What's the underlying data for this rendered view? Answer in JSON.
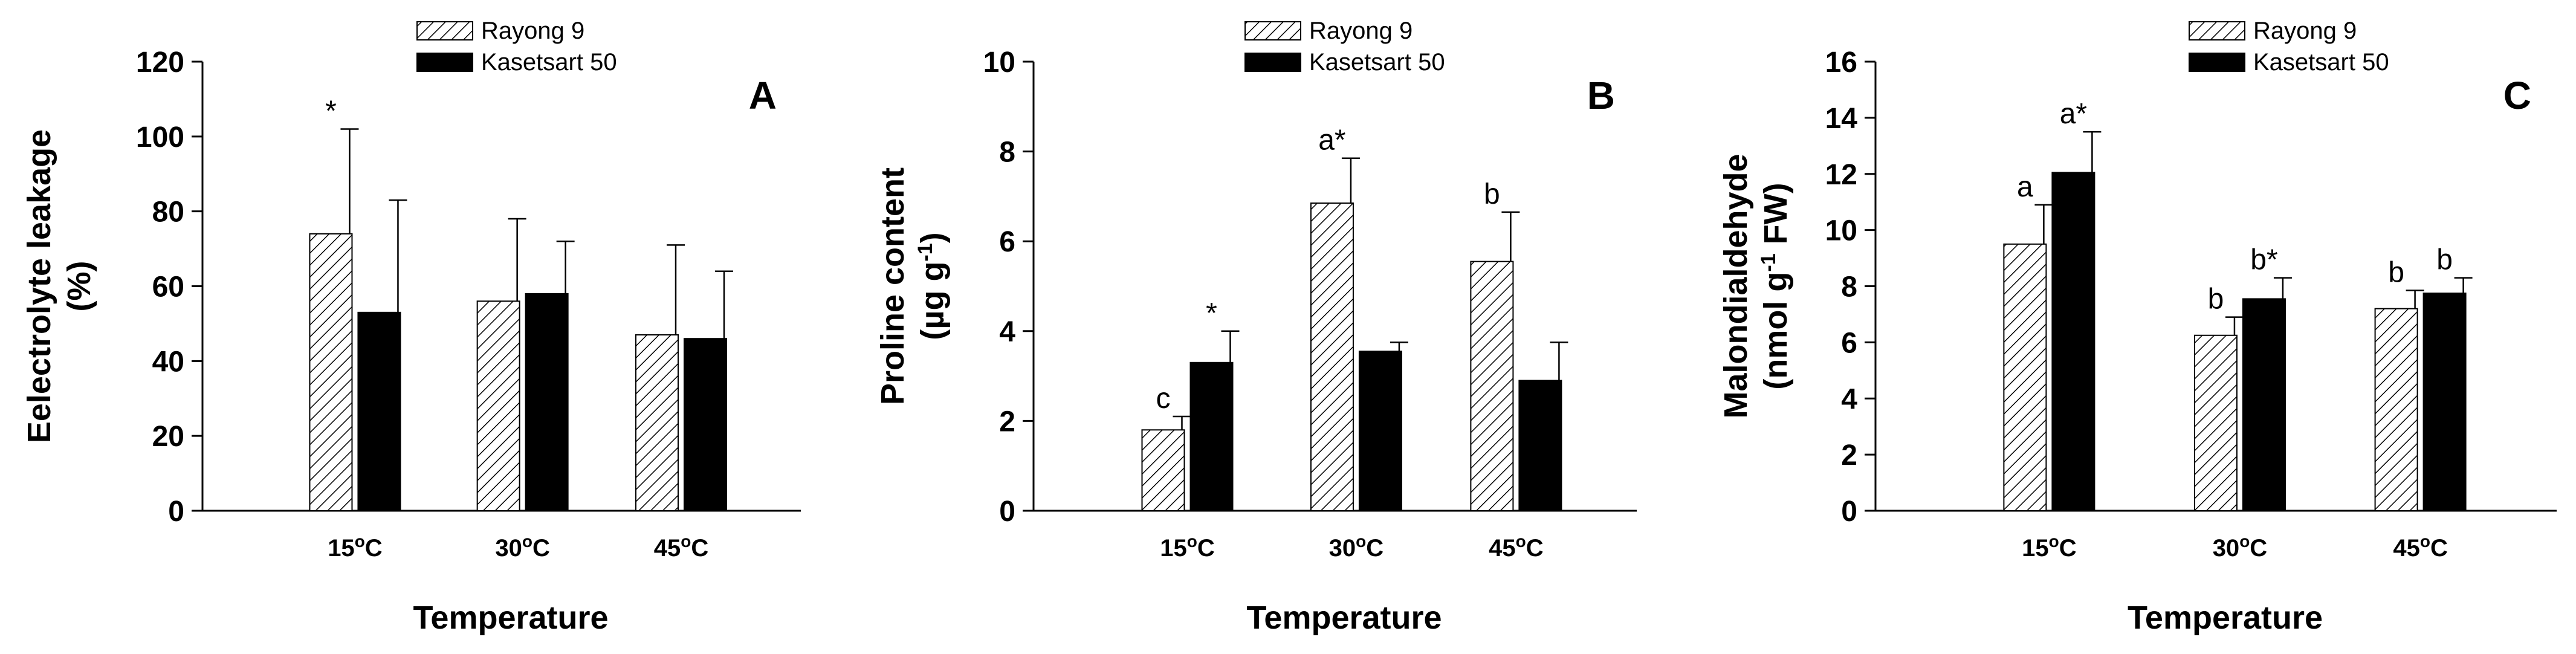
{
  "chart_data": [
    {
      "type": "bar",
      "panel_label": "A",
      "title": "",
      "xlabel": "Temperature",
      "ylabel": [
        "Eelectrolyte leakage",
        "(%)"
      ],
      "ylim": [
        0,
        120
      ],
      "yticks": [
        0,
        20,
        40,
        60,
        80,
        100,
        120
      ],
      "ytick_labels": [
        "0",
        "20",
        "40",
        "60",
        "80",
        "100",
        "120"
      ],
      "categories": [
        {
          "base": "15",
          "deg": "o",
          "unit": "C"
        },
        {
          "base": "30",
          "deg": "o",
          "unit": "C"
        },
        {
          "base": "45",
          "deg": "o",
          "unit": "C"
        }
      ],
      "series": [
        {
          "name": "Rayong 9",
          "pattern": "hatch",
          "values": [
            74,
            56,
            47
          ],
          "errors": [
            28,
            22,
            24
          ],
          "labels": [
            "*",
            "",
            ""
          ]
        },
        {
          "name": "Kasetsart 50",
          "pattern": "solid",
          "values": [
            53,
            58,
            46
          ],
          "errors": [
            30,
            14,
            18
          ],
          "labels": [
            "",
            "",
            ""
          ]
        }
      ],
      "legend_position": "top-center"
    },
    {
      "type": "bar",
      "panel_label": "B",
      "title": "",
      "xlabel": "Temperature",
      "ylabel": [
        "Proline content",
        "(µg g",
        "-1",
        ")"
      ],
      "ylim": [
        0,
        10
      ],
      "yticks": [
        0,
        2,
        4,
        6,
        8,
        10
      ],
      "ytick_labels": [
        "0",
        "2",
        "4",
        "6",
        "8",
        "10"
      ],
      "categories": [
        {
          "base": "15",
          "deg": "o",
          "unit": "C"
        },
        {
          "base": "30",
          "deg": "o",
          "unit": "C"
        },
        {
          "base": "45",
          "deg": "o",
          "unit": "C"
        }
      ],
      "series": [
        {
          "name": "Rayong 9",
          "pattern": "hatch",
          "values": [
            1.8,
            6.85,
            5.55
          ],
          "errors": [
            0.3,
            1.0,
            1.1
          ],
          "labels": [
            "c",
            "a*",
            "b"
          ]
        },
        {
          "name": "Kasetsart 50",
          "pattern": "solid",
          "values": [
            3.3,
            3.55,
            2.9
          ],
          "errors": [
            0.7,
            0.2,
            0.85
          ],
          "labels": [
            "*",
            "",
            ""
          ]
        }
      ],
      "legend_position": "top-center"
    },
    {
      "type": "bar",
      "panel_label": "C",
      "title": "",
      "xlabel": "Temperature",
      "ylabel": [
        "Malondialdehyde",
        "(nmol g",
        "-1",
        " FW)"
      ],
      "ylim": [
        0,
        16
      ],
      "yticks": [
        0,
        2,
        4,
        6,
        8,
        10,
        12,
        14,
        16
      ],
      "ytick_labels": [
        "0",
        "2",
        "4",
        "6",
        "8",
        "10",
        "12",
        "14",
        "16"
      ],
      "categories": [
        {
          "base": "15",
          "deg": "o",
          "unit": "C"
        },
        {
          "base": "30",
          "deg": "o",
          "unit": "C"
        },
        {
          "base": "45",
          "deg": "o",
          "unit": "C"
        }
      ],
      "series": [
        {
          "name": "Rayong 9",
          "pattern": "hatch",
          "values": [
            9.5,
            6.25,
            7.2
          ],
          "errors": [
            1.4,
            0.65,
            0.65
          ],
          "labels": [
            "a",
            "b",
            "b"
          ]
        },
        {
          "name": "Kasetsart 50",
          "pattern": "solid",
          "values": [
            12.05,
            7.55,
            7.75
          ],
          "errors": [
            1.45,
            0.75,
            0.55
          ],
          "labels": [
            "a*",
            "b*",
            "b"
          ]
        }
      ],
      "legend_position": "top-center"
    }
  ]
}
